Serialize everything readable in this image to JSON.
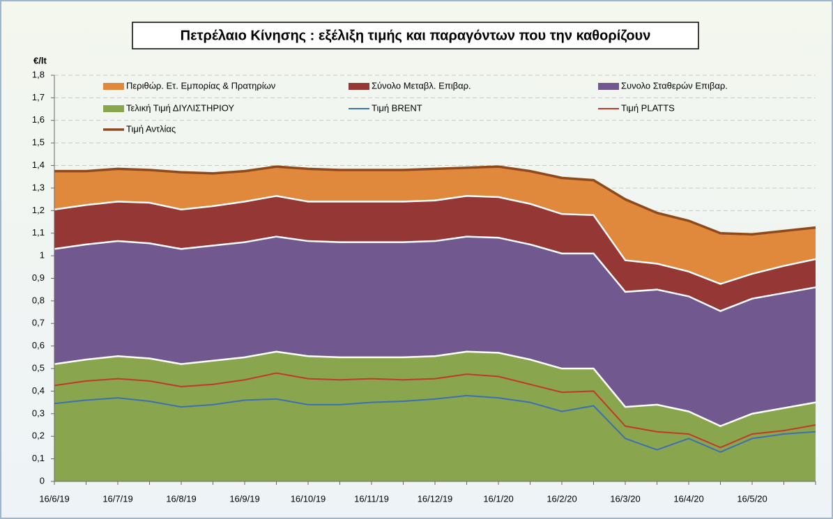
{
  "chart_data": {
    "type": "area",
    "title": "Πετρέλαιο Κίνησης : εξέλιξη τιμής και παραγόντων που την καθορίζουν",
    "y_label": "€/lt",
    "categories": [
      "16/6/19",
      null,
      "16/7/19",
      null,
      "16/8/19",
      null,
      "16/9/19",
      null,
      "16/10/19",
      null,
      "16/11/19",
      null,
      "16/12/19",
      null,
      "16/1/20",
      null,
      "16/2/20",
      null,
      "16/3/20",
      null,
      "16/4/20",
      null,
      "16/5/20",
      null,
      null
    ],
    "ylim": [
      0,
      1.8
    ],
    "yticks": [
      0,
      {
        "value": 0.1,
        "label": "0,1"
      },
      {
        "value": 0.2,
        "label": "0,2"
      },
      {
        "value": 0.3,
        "label": "0,3"
      },
      {
        "value": 0.4,
        "label": "0,4"
      },
      {
        "value": 0.5,
        "label": "0,5"
      },
      {
        "value": 0.6,
        "label": "0,6"
      },
      {
        "value": 0.7,
        "label": "0,7"
      },
      {
        "value": 0.8,
        "label": "0,8"
      },
      {
        "value": 0.9,
        "label": "0,9"
      },
      1,
      {
        "value": 1.1,
        "label": "1,1"
      },
      {
        "value": 1.2,
        "label": "1,2"
      },
      {
        "value": 1.3,
        "label": "1,3"
      },
      {
        "value": 1.4,
        "label": "1,4"
      },
      {
        "value": 1.5,
        "label": "1,5"
      },
      {
        "value": 1.6,
        "label": "1,6"
      },
      {
        "value": 1.7,
        "label": "1,7"
      },
      {
        "value": 1.8,
        "label": "1,8"
      }
    ],
    "grid": true,
    "series": [
      {
        "name": "Περιθώρ. Ετ. Εμπορίας & Πρατηρίων",
        "type": "area",
        "color": "#e0883c",
        "values": [
          0.17,
          0.15,
          0.145,
          0.145,
          0.165,
          0.145,
          0.135,
          0.13,
          0.145,
          0.14,
          0.14,
          0.14,
          0.14,
          0.125,
          0.135,
          0.145,
          0.16,
          0.155,
          0.27,
          0.225,
          0.225,
          0.225,
          0.175,
          0.155,
          0.14
        ]
      },
      {
        "name": "Σύνολο Μεταβλ. Επιβαρ.",
        "type": "area",
        "color": "#953735",
        "values": [
          0.175,
          0.175,
          0.175,
          0.18,
          0.175,
          0.175,
          0.18,
          0.18,
          0.175,
          0.18,
          0.18,
          0.18,
          0.18,
          0.18,
          0.18,
          0.18,
          0.175,
          0.17,
          0.14,
          0.115,
          0.11,
          0.12,
          0.11,
          0.12,
          0.125
        ]
      },
      {
        "name": "Συνολο Σταθερών Επιβαρ.",
        "type": "area",
        "color": "#71588f",
        "values": [
          0.51,
          0.51,
          0.51,
          0.51,
          0.51,
          0.51,
          0.51,
          0.51,
          0.51,
          0.51,
          0.51,
          0.51,
          0.51,
          0.51,
          0.51,
          0.51,
          0.51,
          0.51,
          0.51,
          0.51,
          0.51,
          0.51,
          0.51,
          0.51,
          0.51
        ]
      },
      {
        "name": "Τελική Τιμή ΔΙΥΛΙΣΤΗΡΙΟΥ",
        "type": "area",
        "color": "#89a54e",
        "values": [
          0.52,
          0.54,
          0.555,
          0.545,
          0.52,
          0.535,
          0.55,
          0.575,
          0.555,
          0.55,
          0.55,
          0.55,
          0.555,
          0.575,
          0.57,
          0.54,
          0.5,
          0.5,
          0.33,
          0.34,
          0.31,
          0.245,
          0.3,
          0.325,
          0.35
        ]
      },
      {
        "name": "Τιμή BRENT",
        "type": "line",
        "color": "#3d6fb4",
        "values": [
          0.345,
          0.36,
          0.37,
          0.355,
          0.33,
          0.34,
          0.36,
          0.365,
          0.34,
          0.34,
          0.35,
          0.355,
          0.365,
          0.38,
          0.37,
          0.35,
          0.31,
          0.335,
          0.19,
          0.14,
          0.19,
          0.13,
          0.19,
          0.21,
          0.22
        ]
      },
      {
        "name": "Τιμή PLATTS",
        "type": "line",
        "color": "#c0392b",
        "values": [
          0.425,
          0.445,
          0.455,
          0.445,
          0.42,
          0.43,
          0.45,
          0.48,
          0.455,
          0.45,
          0.455,
          0.45,
          0.455,
          0.475,
          0.465,
          0.43,
          0.395,
          0.4,
          0.245,
          0.22,
          0.21,
          0.15,
          0.21,
          0.225,
          0.25
        ]
      },
      {
        "name": "Τιμή Αντλίας",
        "type": "line",
        "color": "#8e4a1c",
        "values": [
          1.375,
          1.375,
          1.385,
          1.38,
          1.37,
          1.365,
          1.375,
          1.395,
          1.385,
          1.38,
          1.38,
          1.38,
          1.385,
          1.39,
          1.395,
          1.375,
          1.345,
          1.335,
          1.25,
          1.19,
          1.155,
          1.1,
          1.095,
          1.11,
          1.125
        ]
      }
    ]
  }
}
